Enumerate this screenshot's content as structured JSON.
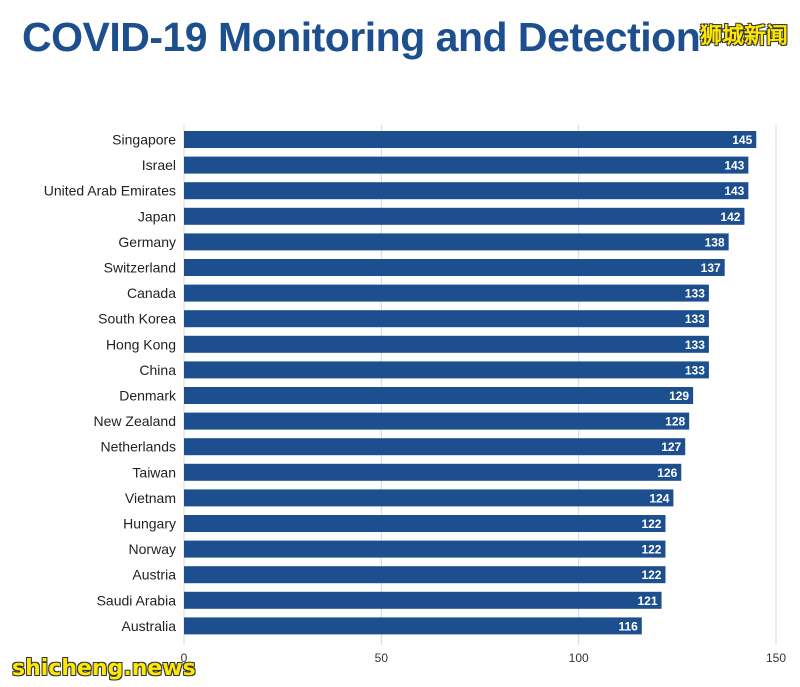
{
  "header": {
    "title": "COVID-19 Monitoring and Detection",
    "watermark_top": "狮城新闻",
    "watermark_bottom": "shicheng.news"
  },
  "colors": {
    "title": "#1d4f8f",
    "bar": "#1d4f8f",
    "bar_label": "#ffffff",
    "grid": "#d9d3e3",
    "watermark": "#ffe800"
  },
  "chart_data": {
    "type": "bar",
    "orientation": "horizontal",
    "title": "COVID-19 Monitoring and Detection",
    "xlabel": "",
    "ylabel": "",
    "xlim": [
      0,
      150
    ],
    "xticks": [
      0,
      50,
      100,
      150
    ],
    "grid": true,
    "categories": [
      "Singapore",
      "Israel",
      "United Arab Emirates",
      "Japan",
      "Germany",
      "Switzerland",
      "Canada",
      "South Korea",
      "Hong Kong",
      "China",
      "Denmark",
      "New Zealand",
      "Netherlands",
      "Taiwan",
      "Vietnam",
      "Hungary",
      "Norway",
      "Austria",
      "Saudi Arabia",
      "Australia"
    ],
    "values": [
      145,
      143,
      143,
      142,
      138,
      137,
      133,
      133,
      133,
      133,
      129,
      128,
      127,
      126,
      124,
      122,
      122,
      122,
      121,
      116
    ]
  }
}
